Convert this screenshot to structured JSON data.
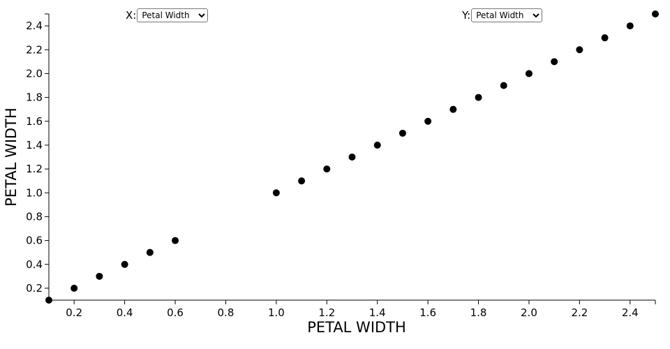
{
  "controls": {
    "x_label": "X:",
    "y_label": "Y:",
    "options": [
      "Petal Width"
    ],
    "x_selected": "Petal Width",
    "y_selected": "Petal Width"
  },
  "chart_data": {
    "type": "scatter",
    "xlabel": "PETAL WIDTH",
    "ylabel": "PETAL WIDTH",
    "xlim": [
      0.1,
      2.5
    ],
    "ylim": [
      0.1,
      2.5
    ],
    "xticks": [
      "0.2",
      "0.4",
      "0.6",
      "0.8",
      "1.0",
      "1.2",
      "1.4",
      "1.6",
      "1.8",
      "2.0",
      "2.2",
      "2.4"
    ],
    "yticks": [
      "0.2",
      "0.4",
      "0.6",
      "0.8",
      "1.0",
      "1.2",
      "1.4",
      "1.6",
      "1.8",
      "2.0",
      "2.2",
      "2.4"
    ],
    "point_color": "#000000",
    "points": [
      {
        "x": 0.1,
        "y": 0.1
      },
      {
        "x": 0.2,
        "y": 0.2
      },
      {
        "x": 0.3,
        "y": 0.3
      },
      {
        "x": 0.4,
        "y": 0.4
      },
      {
        "x": 0.5,
        "y": 0.5
      },
      {
        "x": 0.6,
        "y": 0.6
      },
      {
        "x": 1.0,
        "y": 1.0
      },
      {
        "x": 1.1,
        "y": 1.1
      },
      {
        "x": 1.2,
        "y": 1.2
      },
      {
        "x": 1.3,
        "y": 1.3
      },
      {
        "x": 1.4,
        "y": 1.4
      },
      {
        "x": 1.5,
        "y": 1.5
      },
      {
        "x": 1.6,
        "y": 1.6
      },
      {
        "x": 1.7,
        "y": 1.7
      },
      {
        "x": 1.8,
        "y": 1.8
      },
      {
        "x": 1.9,
        "y": 1.9
      },
      {
        "x": 2.0,
        "y": 2.0
      },
      {
        "x": 2.1,
        "y": 2.1
      },
      {
        "x": 2.2,
        "y": 2.2
      },
      {
        "x": 2.3,
        "y": 2.3
      },
      {
        "x": 2.4,
        "y": 2.4
      },
      {
        "x": 2.5,
        "y": 2.5
      }
    ]
  }
}
